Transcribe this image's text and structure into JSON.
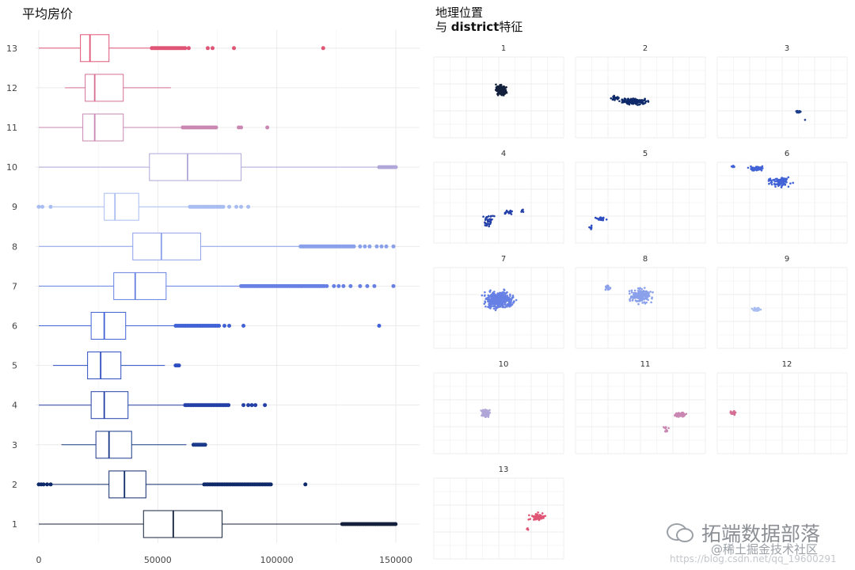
{
  "chart_data": [
    {
      "type": "boxplot",
      "orientation": "horizontal",
      "title": "平均房价",
      "xlim": [
        0,
        155000
      ],
      "x_ticks": [
        0,
        50000,
        100000,
        150000
      ],
      "x_tick_labels": [
        "0",
        "50000",
        "100000",
        "150000"
      ],
      "grid": true,
      "legend": "none",
      "categories": [
        "1",
        "2",
        "3",
        "4",
        "5",
        "6",
        "7",
        "8",
        "9",
        "10",
        "11",
        "12",
        "13"
      ],
      "boxes": [
        {
          "category": "1",
          "color": "#14213d",
          "whisker_low": 0,
          "q1": 44000,
          "median": 56500,
          "q3": 77000,
          "whisker_high": 127000,
          "outliers_from": 127500,
          "outliers_to": 150000
        },
        {
          "category": "2",
          "color": "#0e2a6a",
          "whisker_low": 0,
          "q1": 29500,
          "median": 36000,
          "q3": 45000,
          "whisker_high": 69000,
          "outliers_from": 69500,
          "outliers_to": 98000,
          "extra_outliers": [
            0,
            1000,
            2000,
            3500,
            5000,
            112000
          ]
        },
        {
          "category": "3",
          "color": "#1b3a8a",
          "whisker_low": 9500,
          "q1": 24000,
          "median": 29500,
          "q3": 39000,
          "whisker_high": 62000,
          "outliers_from": 65000,
          "outliers_to": 70000
        },
        {
          "category": "4",
          "color": "#2440a8",
          "whisker_low": 0,
          "q1": 22000,
          "median": 27500,
          "q3": 37500,
          "whisker_high": 61000,
          "outliers_from": 61500,
          "outliers_to": 80000,
          "extra_outliers": [
            86000,
            88000,
            89500,
            91000,
            95000
          ]
        },
        {
          "category": "5",
          "color": "#2d4dc0",
          "whisker_low": 6000,
          "q1": 20500,
          "median": 26000,
          "q3": 34500,
          "whisker_high": 53000,
          "outliers_from": 57500,
          "outliers_to": 59000
        },
        {
          "category": "6",
          "color": "#4162d6",
          "whisker_low": 0,
          "q1": 22000,
          "median": 27500,
          "q3": 36500,
          "whisker_high": 57500,
          "outliers_from": 57500,
          "outliers_to": 76000,
          "extra_outliers": [
            78000,
            80000,
            86000,
            143000
          ]
        },
        {
          "category": "7",
          "color": "#6680e4",
          "whisker_low": 0,
          "q1": 31500,
          "median": 40500,
          "q3": 53500,
          "whisker_high": 85000,
          "outliers_from": 85000,
          "outliers_to": 120000,
          "extra_outliers": [
            121000,
            124000,
            126000,
            128000,
            131000,
            135000,
            138000,
            141000,
            149000
          ]
        },
        {
          "category": "8",
          "color": "#8aa0ea",
          "whisker_low": 0,
          "q1": 39500,
          "median": 51500,
          "q3": 68000,
          "whisker_high": 110000,
          "outliers_from": 110000,
          "outliers_to": 133000,
          "extra_outliers": [
            135000,
            137000,
            139000,
            142000,
            144000,
            146000,
            149000
          ]
        },
        {
          "category": "9",
          "color": "#a9bdf2",
          "whisker_low": 6000,
          "q1": 27500,
          "median": 32000,
          "q3": 42000,
          "whisker_high": 63500,
          "outliers_from": 63500,
          "outliers_to": 78000,
          "extra_outliers": [
            0,
            1500,
            5000,
            80000,
            83000,
            85000,
            88000
          ]
        },
        {
          "category": "10",
          "color": "#b0a6d8",
          "whisker_low": 0,
          "q1": 46500,
          "median": 62500,
          "q3": 85000,
          "whisker_high": 143000,
          "outliers_from": 143000,
          "outliers_to": 150000
        },
        {
          "category": "11",
          "color": "#c987b2",
          "whisker_low": 0,
          "q1": 18500,
          "median": 23500,
          "q3": 35500,
          "whisker_high": 60500,
          "outliers_from": 60500,
          "outliers_to": 75000,
          "extra_outliers": [
            84000,
            85000,
            96000
          ]
        },
        {
          "category": "12",
          "color": "#d56e95",
          "whisker_low": 11000,
          "q1": 19500,
          "median": 23500,
          "q3": 35500,
          "whisker_high": 55500
        },
        {
          "category": "13",
          "color": "#e05575",
          "whisker_low": 0,
          "q1": 17500,
          "median": 21500,
          "q3": 29500,
          "whisker_high": 47500,
          "outliers_from": 47500,
          "outliers_to": 62000,
          "extra_outliers": [
            63000,
            71000,
            73000,
            82000,
            119500
          ]
        }
      ]
    },
    {
      "type": "scatter",
      "subtype": "faceted-map",
      "title_line1": "地理位置",
      "title_line2_prefix": "与 ",
      "title_line2_bold": "district",
      "title_line2_suffix": "特征",
      "grid": true,
      "facets": [
        {
          "label": "1",
          "color": "#14213d",
          "clusters": [
            {
              "cx": 0.52,
              "cy": 0.41,
              "rx": 0.05,
              "ry": 0.08,
              "n": 220
            }
          ]
        },
        {
          "label": "2",
          "color": "#0e2a6a",
          "clusters": [
            {
              "cx": 0.45,
              "cy": 0.55,
              "rx": 0.14,
              "ry": 0.05,
              "n": 160
            },
            {
              "cx": 0.3,
              "cy": 0.5,
              "rx": 0.05,
              "ry": 0.04,
              "n": 25
            }
          ]
        },
        {
          "label": "3",
          "color": "#1b3a8a",
          "clusters": [
            {
              "cx": 0.63,
              "cy": 0.68,
              "rx": 0.03,
              "ry": 0.03,
              "n": 18
            },
            {
              "cx": 0.68,
              "cy": 0.78,
              "rx": 0.005,
              "ry": 0.005,
              "n": 1
            }
          ]
        },
        {
          "label": "4",
          "color": "#2440a8",
          "clusters": [
            {
              "cx": 0.42,
              "cy": 0.72,
              "rx": 0.05,
              "ry": 0.12,
              "n": 40
            },
            {
              "cx": 0.58,
              "cy": 0.62,
              "rx": 0.05,
              "ry": 0.04,
              "n": 18
            },
            {
              "cx": 0.68,
              "cy": 0.6,
              "rx": 0.02,
              "ry": 0.02,
              "n": 6
            }
          ]
        },
        {
          "label": "5",
          "color": "#2d4dc0",
          "clusters": [
            {
              "cx": 0.2,
              "cy": 0.7,
              "rx": 0.06,
              "ry": 0.03,
              "n": 25
            },
            {
              "cx": 0.12,
              "cy": 0.8,
              "rx": 0.02,
              "ry": 0.05,
              "n": 6
            }
          ]
        },
        {
          "label": "6",
          "color": "#4162d6",
          "clusters": [
            {
              "cx": 0.3,
              "cy": 0.08,
              "rx": 0.08,
              "ry": 0.04,
              "n": 40
            },
            {
              "cx": 0.48,
              "cy": 0.24,
              "rx": 0.12,
              "ry": 0.08,
              "n": 100
            },
            {
              "cx": 0.12,
              "cy": 0.05,
              "rx": 0.02,
              "ry": 0.02,
              "n": 6
            }
          ]
        },
        {
          "label": "7",
          "color": "#6680e4",
          "clusters": [
            {
              "cx": 0.5,
              "cy": 0.4,
              "rx": 0.15,
              "ry": 0.14,
              "n": 420
            }
          ]
        },
        {
          "label": "8",
          "color": "#8aa0ea",
          "clusters": [
            {
              "cx": 0.5,
              "cy": 0.35,
              "rx": 0.12,
              "ry": 0.12,
              "n": 200
            },
            {
              "cx": 0.25,
              "cy": 0.25,
              "rx": 0.04,
              "ry": 0.04,
              "n": 15
            }
          ]
        },
        {
          "label": "9",
          "color": "#a9bdf2",
          "clusters": [
            {
              "cx": 0.3,
              "cy": 0.52,
              "rx": 0.05,
              "ry": 0.03,
              "n": 30
            }
          ]
        },
        {
          "label": "10",
          "color": "#b0a6d8",
          "clusters": [
            {
              "cx": 0.4,
              "cy": 0.5,
              "rx": 0.04,
              "ry": 0.06,
              "n": 140
            }
          ]
        },
        {
          "label": "11",
          "color": "#c987b2",
          "clusters": [
            {
              "cx": 0.8,
              "cy": 0.52,
              "rx": 0.06,
              "ry": 0.04,
              "n": 70
            },
            {
              "cx": 0.7,
              "cy": 0.7,
              "rx": 0.03,
              "ry": 0.05,
              "n": 12
            }
          ]
        },
        {
          "label": "12",
          "color": "#d56e95",
          "clusters": [
            {
              "cx": 0.12,
              "cy": 0.5,
              "rx": 0.03,
              "ry": 0.04,
              "n": 14
            }
          ]
        },
        {
          "label": "13",
          "color": "#e05575",
          "clusters": [
            {
              "cx": 0.8,
              "cy": 0.48,
              "rx": 0.08,
              "ry": 0.06,
              "n": 60
            },
            {
              "cx": 0.72,
              "cy": 0.62,
              "rx": 0.02,
              "ry": 0.03,
              "n": 6
            }
          ]
        }
      ]
    }
  ],
  "watermark": {
    "brand": "拓端数据部落",
    "line2": "@稀土掘金技术社区",
    "url": "https://blog.csdn.net/qq_19600291"
  }
}
